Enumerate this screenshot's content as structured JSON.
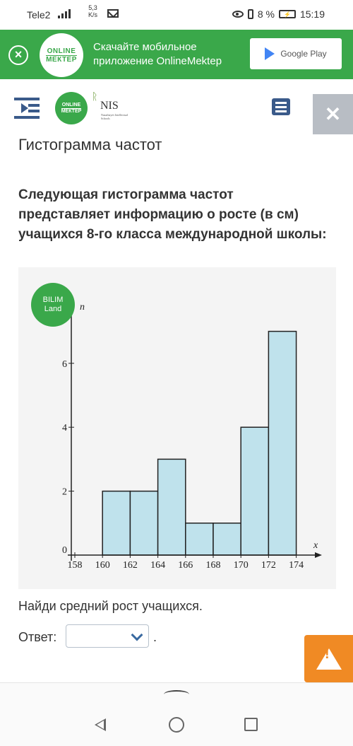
{
  "status_bar": {
    "carrier": "Tele2",
    "speed_value": "5,3",
    "speed_unit": "K/s",
    "battery": "8 %",
    "time": "15:19"
  },
  "banner": {
    "logo_line1": "ONLINE",
    "logo_line2": "МЕКТЕР",
    "text": "Скачайте мобильное приложение OnlineMektep",
    "store_label": "Google Play"
  },
  "header": {
    "logo_line1": "ONLINE",
    "logo_line2": "МЕКТЕР",
    "partner_name": "NIS",
    "partner_sub": "Nazarbayev Intellectual Schools"
  },
  "page": {
    "title": "Гистограмма частот",
    "question": "Следующая гистограмма частот представляет информацию о росте (в см) учащихся 8-го класса международной школы:",
    "instruction": "Найди средний рост учащихся.",
    "answer_label": "Ответ:",
    "answer_value": "",
    "answer_suffix": "."
  },
  "watermark": {
    "line1": "BILIM",
    "line2": "Land"
  },
  "chart_data": {
    "type": "bar",
    "title": "",
    "xlabel": "x",
    "ylabel": "n",
    "bins": [
      [
        160,
        162
      ],
      [
        162,
        164
      ],
      [
        164,
        166
      ],
      [
        166,
        168
      ],
      [
        168,
        170
      ],
      [
        170,
        172
      ],
      [
        172,
        174
      ]
    ],
    "values": [
      2,
      2,
      3,
      1,
      1,
      4,
      7
    ],
    "x_ticks": [
      "158",
      "160",
      "162",
      "164",
      "166",
      "168",
      "170",
      "172",
      "174"
    ],
    "y_ticks": [
      "0",
      "2",
      "4",
      "6"
    ],
    "xlim": [
      158,
      175
    ],
    "ylim": [
      0,
      7.5
    ],
    "bar_color": "#bfe2ec",
    "grid": false
  }
}
